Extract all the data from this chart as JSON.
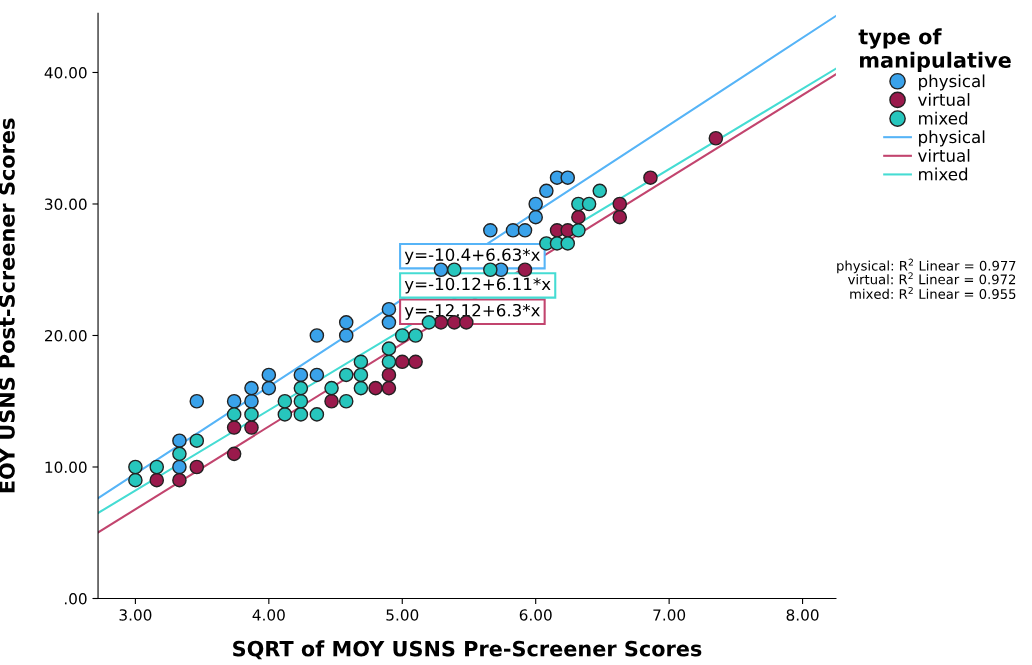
{
  "chart_data": {
    "type": "scatter",
    "xlabel": "SQRT of MOY USNS Pre-Screener Scores",
    "ylabel": "EOY USNS Post-Screener Scores",
    "legend_title": "type of\nmanipulative",
    "legend": "right",
    "grid": false,
    "marker": "circle",
    "xlim": [
      2.72,
      8.25
    ],
    "ylim": [
      0,
      44.5
    ],
    "xticks": [
      {
        "value": 3,
        "label": "3.00"
      },
      {
        "value": 4,
        "label": "4.00"
      },
      {
        "value": 5,
        "label": "5.00"
      },
      {
        "value": 6,
        "label": "6.00"
      },
      {
        "value": 7,
        "label": "7.00"
      },
      {
        "value": 8,
        "label": "8.00"
      }
    ],
    "yticks": [
      {
        "value": 0,
        "label": ".00"
      },
      {
        "value": 10,
        "label": "10.00"
      },
      {
        "value": 20,
        "label": "20.00"
      },
      {
        "value": 30,
        "label": "30.00"
      },
      {
        "value": 40,
        "label": "40.00"
      }
    ],
    "series": [
      {
        "name": "physical",
        "color": "#3aa2ea",
        "x": [
          3.33,
          3.33,
          3.46,
          3.74,
          3.87,
          3.87,
          4.0,
          4.0,
          4.24,
          4.36,
          4.36,
          4.58,
          4.58,
          4.9,
          4.9,
          5.29,
          5.74,
          5.66,
          5.83,
          5.92,
          6.0,
          6.0,
          6.08,
          6.16,
          6.24
        ],
        "values": [
          12,
          10,
          15,
          15,
          15,
          16,
          16,
          17,
          17,
          17,
          20,
          20,
          21,
          21,
          22,
          25,
          25,
          28,
          28,
          28,
          29,
          30,
          31,
          32,
          32
        ]
      },
      {
        "name": "virtual",
        "color": "#9a1a4c",
        "x": [
          3.16,
          3.33,
          3.46,
          3.74,
          3.74,
          3.87,
          4.47,
          4.8,
          4.9,
          4.9,
          5.0,
          5.1,
          5.29,
          5.39,
          5.48,
          5.92,
          6.16,
          6.24,
          6.32,
          6.63,
          6.63,
          6.86,
          7.35
        ],
        "values": [
          9,
          9,
          10,
          11,
          13,
          13,
          15,
          16,
          16,
          17,
          18,
          18,
          21,
          21,
          21,
          25,
          28,
          28,
          29,
          29,
          30,
          32,
          35
        ]
      },
      {
        "name": "mixed",
        "color": "#27c6bd",
        "x": [
          3.0,
          3.0,
          3.16,
          3.33,
          3.46,
          3.74,
          3.87,
          4.12,
          4.12,
          4.24,
          4.24,
          4.24,
          4.36,
          4.47,
          4.58,
          4.58,
          4.69,
          4.69,
          4.69,
          4.9,
          4.9,
          5.0,
          5.1,
          5.2,
          5.39,
          5.66,
          6.08,
          6.16,
          6.24,
          6.32,
          6.32,
          6.4,
          6.48
        ],
        "values": [
          9,
          10,
          10,
          11,
          12,
          14,
          14,
          14,
          15,
          14,
          15,
          16,
          14,
          16,
          15,
          17,
          16,
          17,
          18,
          18,
          19,
          20,
          20,
          21,
          25,
          25,
          27,
          27,
          27,
          28,
          30,
          30,
          31
        ]
      },
      {
        "name": "physical",
        "type": "line",
        "marker": "none",
        "color": "#56b4f7",
        "x": [
          2.72,
          8.25
        ],
        "values": [
          7.63,
          44.3
        ]
      },
      {
        "name": "virtual",
        "type": "line",
        "marker": "none",
        "color": "#c2446e",
        "x": [
          2.72,
          8.25
        ],
        "values": [
          5.02,
          39.86
        ]
      },
      {
        "name": "mixed",
        "type": "line",
        "marker": "none",
        "color": "#45dcd3",
        "x": [
          2.72,
          8.25
        ],
        "values": [
          6.5,
          40.29
        ]
      }
    ],
    "annotations": [
      "y=-10.4+6.63*x",
      "y=-12.12+6.3*x",
      "y=-10.12+6.11*x",
      "physical: R$^{2}$ Linear = 0.977",
      "virtual: R$^{2}$ Linear = 0.972",
      "mixed: R$^{2}$ Linear = 0.955"
    ]
  }
}
